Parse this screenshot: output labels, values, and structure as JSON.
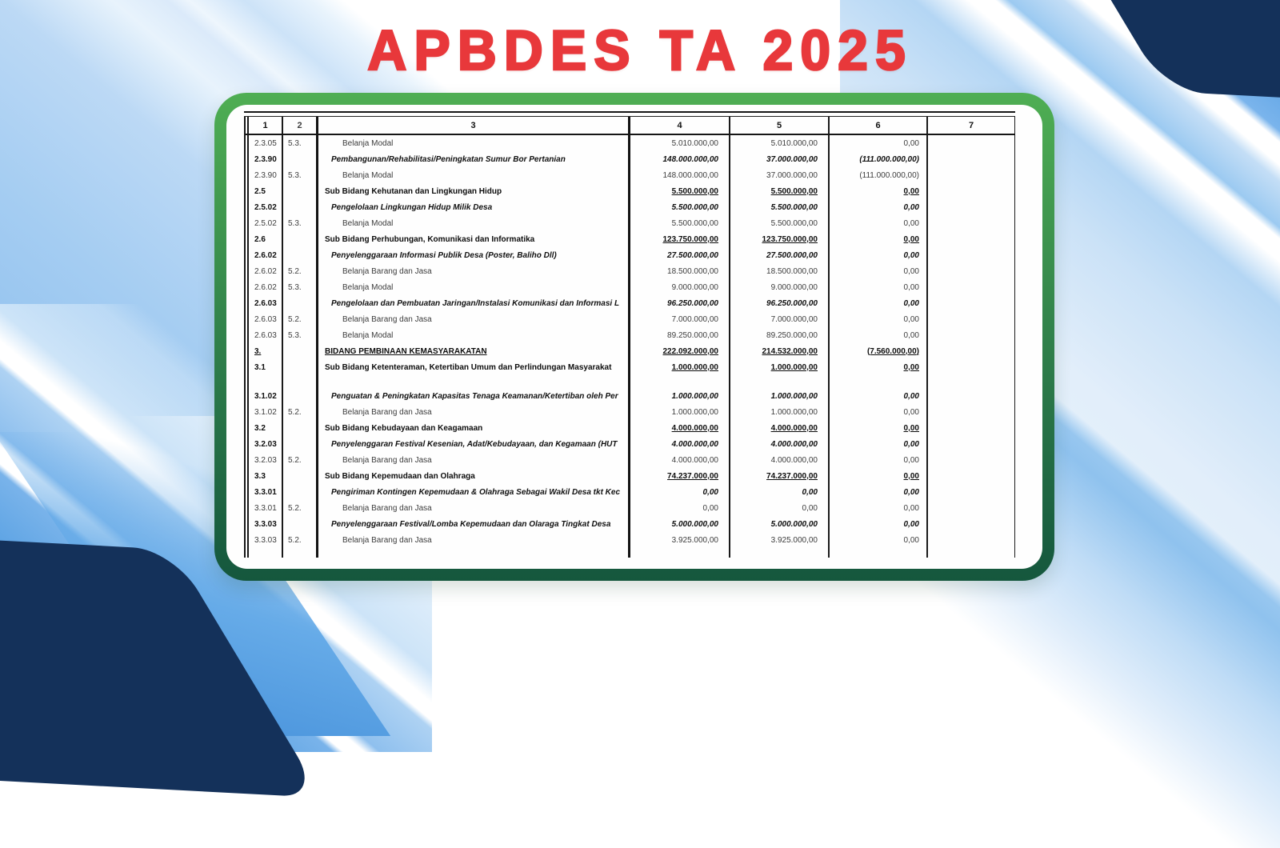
{
  "title": "APBDES TA 2025",
  "colors": {
    "title_red": "#e8383b",
    "frame_green_top": "#4fae53",
    "frame_green_bottom": "#15573d",
    "navy": "#14315a",
    "mid_blue": "#2d6fb5",
    "band_blue": "#8fc0ee",
    "table_line": "#161616"
  },
  "table": {
    "headers": [
      "1",
      "2",
      "3",
      "4",
      "5",
      "6",
      "7"
    ],
    "rows": [
      {
        "c1": "2.3.05",
        "c2": "5.3.",
        "desc": "Belanja Modal",
        "v4": "5.010.000,00",
        "v5": "5.010.000,00",
        "v6": "0,00",
        "style": "detail"
      },
      {
        "c1": "2.3.90",
        "c2": "",
        "desc": "Pembangunan/Rehabilitasi/Peningkatan Sumur Bor Pertanian",
        "v4": "148.000.000,00",
        "v5": "37.000.000,00",
        "v6": "(111.000.000,00)",
        "style": "activity"
      },
      {
        "c1": "2.3.90",
        "c2": "5.3.",
        "desc": "Belanja Modal",
        "v4": "148.000.000,00",
        "v5": "37.000.000,00",
        "v6": "(111.000.000,00)",
        "style": "detail"
      },
      {
        "c1": "2.5",
        "c2": "",
        "desc": "Sub Bidang Kehutanan dan Lingkungan Hidup",
        "v4": "5.500.000,00",
        "v5": "5.500.000,00",
        "v6": "0,00",
        "style": "subbidang"
      },
      {
        "c1": "2.5.02",
        "c2": "",
        "desc": "Pengelolaan Lingkungan Hidup Milik Desa",
        "v4": "5.500.000,00",
        "v5": "5.500.000,00",
        "v6": "0,00",
        "style": "activity"
      },
      {
        "c1": "2.5.02",
        "c2": "5.3.",
        "desc": "Belanja Modal",
        "v4": "5.500.000,00",
        "v5": "5.500.000,00",
        "v6": "0,00",
        "style": "detail"
      },
      {
        "c1": "2.6",
        "c2": "",
        "desc": "Sub Bidang Perhubungan, Komunikasi dan Informatika",
        "v4": "123.750.000,00",
        "v5": "123.750.000,00",
        "v6": "0,00",
        "style": "subbidang"
      },
      {
        "c1": "2.6.02",
        "c2": "",
        "desc": "Penyelenggaraan Informasi Publik Desa (Poster, Baliho Dll)",
        "v4": "27.500.000,00",
        "v5": "27.500.000,00",
        "v6": "0,00",
        "style": "activity"
      },
      {
        "c1": "2.6.02",
        "c2": "5.2.",
        "desc": "Belanja Barang dan Jasa",
        "v4": "18.500.000,00",
        "v5": "18.500.000,00",
        "v6": "0,00",
        "style": "detail"
      },
      {
        "c1": "2.6.02",
        "c2": "5.3.",
        "desc": "Belanja Modal",
        "v4": "9.000.000,00",
        "v5": "9.000.000,00",
        "v6": "0,00",
        "style": "detail"
      },
      {
        "c1": "2.6.03",
        "c2": "",
        "desc": "Pengelolaan dan Pembuatan Jaringan/Instalasi Komunikasi dan Informasi L",
        "v4": "96.250.000,00",
        "v5": "96.250.000,00",
        "v6": "0,00",
        "style": "activity"
      },
      {
        "c1": "2.6.03",
        "c2": "5.2.",
        "desc": "Belanja Barang dan Jasa",
        "v4": "7.000.000,00",
        "v5": "7.000.000,00",
        "v6": "0,00",
        "style": "detail"
      },
      {
        "c1": "2.6.03",
        "c2": "5.3.",
        "desc": "Belanja Modal",
        "v4": "89.250.000,00",
        "v5": "89.250.000,00",
        "v6": "0,00",
        "style": "detail"
      },
      {
        "c1": "3.",
        "c2": "",
        "desc": "BIDANG PEMBINAAN KEMASYARAKATAN",
        "v4": "222.092.000,00",
        "v5": "214.532.000,00",
        "v6": "(7.560.000,00)",
        "style": "bidang"
      },
      {
        "c1": "3.1",
        "c2": "",
        "desc": "Sub Bidang Ketenteraman, Ketertiban Umum dan Perlindungan Masyarakat",
        "v4": "1.000.000,00",
        "v5": "1.000.000,00",
        "v6": "0,00",
        "style": "subbidang"
      },
      {
        "c1": "",
        "c2": "",
        "desc": "",
        "v4": "",
        "v5": "",
        "v6": "",
        "style": "spacer"
      },
      {
        "c1": "3.1.02",
        "c2": "",
        "desc": "Penguatan & Peningkatan Kapasitas Tenaga Keamanan/Ketertiban oleh Per",
        "v4": "1.000.000,00",
        "v5": "1.000.000,00",
        "v6": "0,00",
        "style": "activity"
      },
      {
        "c1": "3.1.02",
        "c2": "5.2.",
        "desc": "Belanja Barang dan Jasa",
        "v4": "1.000.000,00",
        "v5": "1.000.000,00",
        "v6": "0,00",
        "style": "detail"
      },
      {
        "c1": "3.2",
        "c2": "",
        "desc": "Sub Bidang Kebudayaan dan Keagamaan",
        "v4": "4.000.000,00",
        "v5": "4.000.000,00",
        "v6": "0,00",
        "style": "subbidang"
      },
      {
        "c1": "3.2.03",
        "c2": "",
        "desc": "Penyelenggaran Festival Kesenian, Adat/Kebudayaan, dan Kegamaan (HUT",
        "v4": "4.000.000,00",
        "v5": "4.000.000,00",
        "v6": "0,00",
        "style": "activity"
      },
      {
        "c1": "3.2.03",
        "c2": "5.2.",
        "desc": "Belanja Barang dan Jasa",
        "v4": "4.000.000,00",
        "v5": "4.000.000,00",
        "v6": "0,00",
        "style": "detail"
      },
      {
        "c1": "3.3",
        "c2": "",
        "desc": "Sub Bidang Kepemudaan dan Olahraga",
        "v4": "74.237.000,00",
        "v5": "74.237.000,00",
        "v6": "0,00",
        "style": "subbidang"
      },
      {
        "c1": "3.3.01",
        "c2": "",
        "desc": "Pengiriman Kontingen Kepemudaan & Olahraga Sebagai Wakil Desa tkt Kec",
        "v4": "0,00",
        "v5": "0,00",
        "v6": "0,00",
        "style": "activity"
      },
      {
        "c1": "3.3.01",
        "c2": "5.2.",
        "desc": "Belanja Barang dan Jasa",
        "v4": "0,00",
        "v5": "0,00",
        "v6": "0,00",
        "style": "detail"
      },
      {
        "c1": "3.3.03",
        "c2": "",
        "desc": "Penyelenggaraan Festival/Lomba Kepemudaan dan Olaraga Tingkat Desa",
        "v4": "5.000.000,00",
        "v5": "5.000.000,00",
        "v6": "0,00",
        "style": "activity"
      },
      {
        "c1": "3.3.03",
        "c2": "5.2.",
        "desc": "Belanja Barang dan Jasa",
        "v4": "3.925.000,00",
        "v5": "3.925.000,00",
        "v6": "0,00",
        "style": "detail"
      }
    ]
  }
}
